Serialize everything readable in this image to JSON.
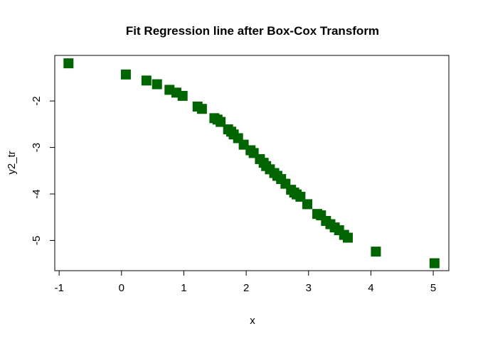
{
  "chart_data": {
    "type": "scatter",
    "title": "Fit Regression line after Box-Cox Transform",
    "xlabel": "x",
    "ylabel": "y2_tr",
    "xlim": [
      -1.07,
      5.25
    ],
    "ylim": [
      -5.65,
      -1.02
    ],
    "xticks": [
      -1,
      0,
      1,
      2,
      3,
      4,
      5
    ],
    "xtick_labels": [
      "-1",
      "0",
      "1",
      "2",
      "3",
      "4",
      "5"
    ],
    "yticks": [
      -2,
      -3,
      -4,
      -5
    ],
    "ytick_labels": [
      "-2",
      "-3",
      "-4",
      "-5"
    ],
    "grid": false,
    "marker": "square",
    "color": "#006400",
    "points": [
      [
        -0.85,
        -1.19
      ],
      [
        0.07,
        -1.43
      ],
      [
        0.4,
        -1.56
      ],
      [
        0.57,
        -1.64
      ],
      [
        0.77,
        -1.76
      ],
      [
        0.88,
        -1.82
      ],
      [
        0.98,
        -1.89
      ],
      [
        1.22,
        -2.12
      ],
      [
        1.29,
        -2.17
      ],
      [
        1.49,
        -2.37
      ],
      [
        1.54,
        -2.4
      ],
      [
        1.59,
        -2.45
      ],
      [
        1.71,
        -2.61
      ],
      [
        1.76,
        -2.66
      ],
      [
        1.8,
        -2.72
      ],
      [
        1.87,
        -2.8
      ],
      [
        1.96,
        -2.94
      ],
      [
        2.07,
        -3.06
      ],
      [
        2.12,
        -3.12
      ],
      [
        2.22,
        -3.25
      ],
      [
        2.28,
        -3.33
      ],
      [
        2.32,
        -3.4
      ],
      [
        2.38,
        -3.47
      ],
      [
        2.45,
        -3.55
      ],
      [
        2.5,
        -3.61
      ],
      [
        2.56,
        -3.68
      ],
      [
        2.63,
        -3.78
      ],
      [
        2.72,
        -3.91
      ],
      [
        2.77,
        -3.97
      ],
      [
        2.81,
        -4.01
      ],
      [
        2.87,
        -4.06
      ],
      [
        2.98,
        -4.22
      ],
      [
        3.14,
        -4.43
      ],
      [
        3.2,
        -4.46
      ],
      [
        3.28,
        -4.58
      ],
      [
        3.35,
        -4.65
      ],
      [
        3.42,
        -4.72
      ],
      [
        3.49,
        -4.78
      ],
      [
        3.57,
        -4.88
      ],
      [
        3.63,
        -4.94
      ],
      [
        4.08,
        -5.24
      ],
      [
        5.02,
        -5.49
      ]
    ]
  }
}
